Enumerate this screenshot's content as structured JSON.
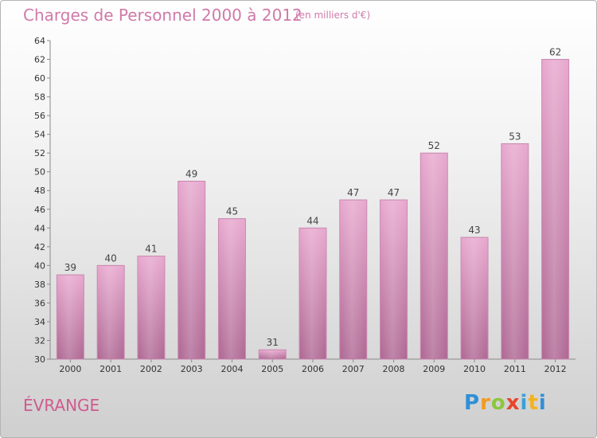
{
  "title": "Charges de Personnel 2000 à 2012",
  "unit": "(en milliers d'€)",
  "town": "ÉVRANGE",
  "logo": [
    "P",
    "r",
    "o",
    "x",
    "i",
    "t",
    "i"
  ],
  "colors": {
    "bar_top": "#e6a6cc",
    "bar_bottom": "#b56e99",
    "bar_edge": "#c98ab0",
    "title": "#d07aa9"
  },
  "chart_data": {
    "type": "bar",
    "categories": [
      "2000",
      "2001",
      "2002",
      "2003",
      "2004",
      "2005",
      "2006",
      "2007",
      "2008",
      "2009",
      "2010",
      "2011",
      "2012"
    ],
    "values": [
      39,
      40,
      41,
      49,
      45,
      31,
      44,
      47,
      47,
      52,
      43,
      53,
      62
    ],
    "ylim": [
      30,
      64
    ],
    "yticks": [
      30,
      32,
      34,
      36,
      38,
      40,
      42,
      44,
      46,
      48,
      50,
      52,
      54,
      56,
      58,
      60,
      62,
      64
    ],
    "grid": false
  }
}
